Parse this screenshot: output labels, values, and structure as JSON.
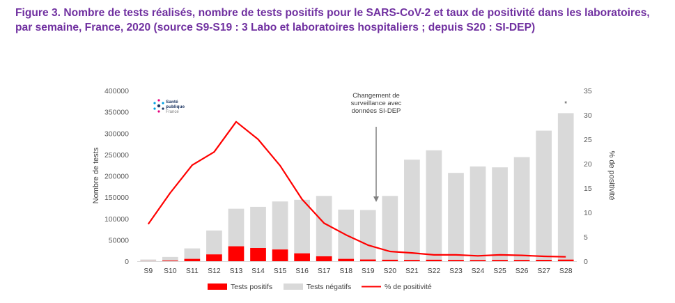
{
  "title": "Figure 3. Nombre de tests réalisés, nombre de tests positifs pour le SARS-CoV-2 et taux de positivité dans les laboratoires, par semaine, France, 2020 (source S9-S19 : 3 Labo et laboratoires hospitaliers ; depuis S20 : SI-DEP)",
  "logo": {
    "line1": "Santé",
    "line2": "publique",
    "line3": "France"
  },
  "colors": {
    "positive": "#ff0000",
    "negative": "#d9d9d9",
    "rate": "#ff0000",
    "title": "#7030a0"
  },
  "chart_data": {
    "type": "bar",
    "stacked": true,
    "categories": [
      "S9",
      "S10",
      "S11",
      "S12",
      "S13",
      "S14",
      "S15",
      "S16",
      "S17",
      "S18",
      "S19",
      "S20",
      "S21",
      "S22",
      "S23",
      "S24",
      "S25",
      "S26",
      "S27",
      "S28"
    ],
    "series": [
      {
        "name": "Tests positifs",
        "axis": "left",
        "values": [
          200,
          1500,
          5500,
          16000,
          35000,
          31000,
          27500,
          18500,
          11500,
          5500,
          4000,
          3500,
          3000,
          3500,
          3000,
          2800,
          3000,
          3000,
          3200,
          3800
        ]
      },
      {
        "name": "Tests négatifs",
        "axis": "left",
        "values": [
          3800,
          8500,
          24500,
          56000,
          88000,
          96500,
          112500,
          125500,
          141500,
          115500,
          116000,
          149500,
          235000,
          256500,
          204000,
          219200,
          217000,
          241000,
          302800,
          343200
        ]
      },
      {
        "name": "% de positivité",
        "type": "line",
        "axis": "right",
        "values": [
          7.6,
          14.0,
          19.7,
          22.4,
          28.6,
          25.0,
          19.6,
          12.7,
          7.8,
          5.4,
          3.3,
          2.0,
          1.7,
          1.3,
          1.3,
          1.1,
          1.3,
          1.2,
          1.0,
          0.9
        ]
      }
    ],
    "ylabel": "Nombre de tests",
    "ylabel_right": "% de positivité",
    "ylim": [
      0,
      400000
    ],
    "yticks": [
      "0",
      "50000",
      "100000",
      "150000",
      "200000",
      "250000",
      "300000",
      "350000",
      "400000"
    ],
    "ylim_right": [
      0,
      35
    ],
    "yticks_right": [
      "0",
      "5",
      "10",
      "15",
      "20",
      "25",
      "30",
      "35"
    ],
    "grid": false,
    "legend_position": "bottom",
    "annotations": [
      {
        "text_lines": [
          "Changement de",
          "surveillance avec",
          "données SI-DEP"
        ],
        "target_category": "S19"
      },
      {
        "text": "*",
        "target_category": "S28"
      }
    ]
  }
}
